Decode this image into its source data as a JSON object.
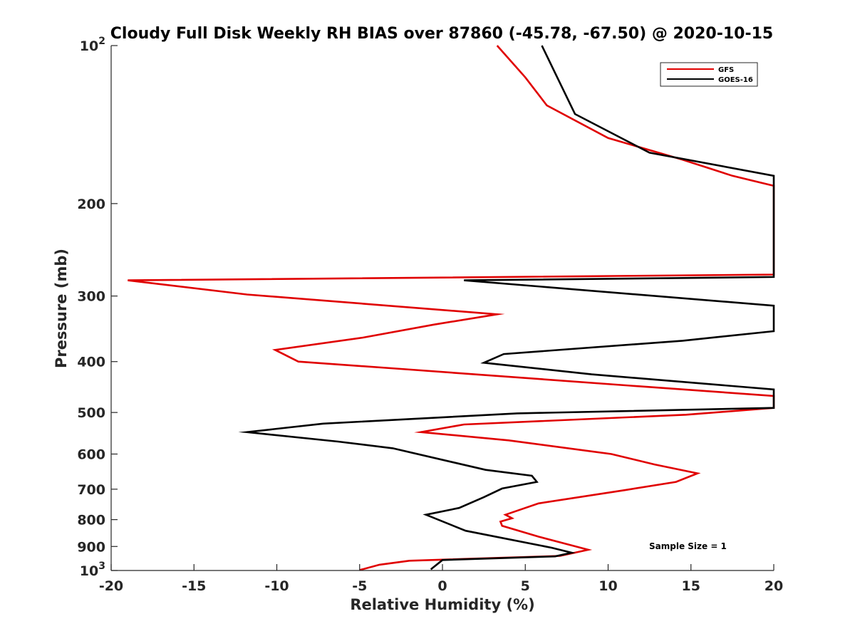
{
  "chart_data": {
    "type": "line",
    "title": "Cloudy Full Disk Weekly RH BIAS over 87860 (-45.78, -67.50) @ 2020-10-15",
    "xlabel": "Relative Humidity (%)",
    "ylabel": "Pressure (mb)",
    "xlim": [
      -20,
      20
    ],
    "ylim": [
      100,
      1000
    ],
    "y_scale": "log",
    "y_reversed": true,
    "x_ticks": [
      "-20",
      "-15",
      "-10",
      "-5",
      "0",
      "5",
      "10",
      "15",
      "20"
    ],
    "y_ticks": [
      {
        "value": 100,
        "base": "10",
        "exp": "2"
      },
      {
        "value": 200,
        "label": "200"
      },
      {
        "value": 300,
        "label": "300"
      },
      {
        "value": 400,
        "label": "400"
      },
      {
        "value": 500,
        "label": "500"
      },
      {
        "value": 600,
        "label": "600"
      },
      {
        "value": 700,
        "label": "700"
      },
      {
        "value": 800,
        "label": "800"
      },
      {
        "value": 900,
        "label": "900"
      },
      {
        "value": 1000,
        "base": "10",
        "exp": "3"
      }
    ],
    "grid": false,
    "legend_position": "top-right",
    "annotation": "Sample Size = 1",
    "series": [
      {
        "name": "GFS",
        "color": "#e00000",
        "points": [
          [
            3.3,
            100
          ],
          [
            5,
            115
          ],
          [
            6.3,
            130
          ],
          [
            10,
            150
          ],
          [
            14.5,
            165
          ],
          [
            17.5,
            177
          ],
          [
            20,
            185
          ],
          [
            20,
            273
          ],
          [
            -19,
            280
          ],
          [
            -11.8,
            298
          ],
          [
            3.3,
            325
          ],
          [
            -0.5,
            340
          ],
          [
            -4.8,
            360
          ],
          [
            -10.1,
            380
          ],
          [
            -8.7,
            400
          ],
          [
            -2.5,
            413
          ],
          [
            12,
            446
          ],
          [
            20,
            465
          ],
          [
            20,
            490
          ],
          [
            14.7,
            505
          ],
          [
            1.3,
            527
          ],
          [
            -1.3,
            545
          ],
          [
            4,
            565
          ],
          [
            10.2,
            600
          ],
          [
            12.8,
            628
          ],
          [
            15.4,
            653
          ],
          [
            14.1,
            678
          ],
          [
            11,
            703
          ],
          [
            5.8,
            745
          ],
          [
            3.8,
            783
          ],
          [
            4.2,
            795
          ],
          [
            3.5,
            807
          ],
          [
            3.6,
            822
          ],
          [
            5.8,
            862
          ],
          [
            8.8,
            913
          ],
          [
            7.1,
            938
          ],
          [
            -2,
            958
          ],
          [
            -3.8,
            975
          ],
          [
            -5,
            998
          ]
        ]
      },
      {
        "name": "GOES-16",
        "color": "#000000",
        "points": [
          [
            6,
            100
          ],
          [
            8,
            135
          ],
          [
            12.5,
            160
          ],
          [
            20,
            177
          ],
          [
            20,
            276
          ],
          [
            1.3,
            280
          ],
          [
            20,
            313
          ],
          [
            20,
            350
          ],
          [
            14.5,
            365
          ],
          [
            3.7,
            387
          ],
          [
            2.5,
            402
          ],
          [
            9,
            423
          ],
          [
            20,
            452
          ],
          [
            20,
            490
          ],
          [
            4.5,
            502
          ],
          [
            -7.2,
            525
          ],
          [
            -11.8,
            545
          ],
          [
            -6.3,
            568
          ],
          [
            -3,
            585
          ],
          [
            2.6,
            643
          ],
          [
            5.4,
            660
          ],
          [
            5.7,
            678
          ],
          [
            3.6,
            698
          ],
          [
            2.5,
            725
          ],
          [
            1,
            760
          ],
          [
            -1,
            783
          ],
          [
            1.4,
            840
          ],
          [
            6.6,
            905
          ],
          [
            7.8,
            925
          ],
          [
            6.8,
            940
          ],
          [
            0,
            955
          ],
          [
            -0.7,
            995
          ]
        ]
      }
    ]
  }
}
